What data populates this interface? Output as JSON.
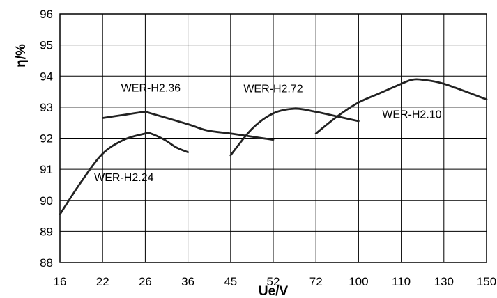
{
  "chart_data": {
    "type": "line",
    "xlabel": "Ue/V",
    "ylabel": "η/%",
    "x_ticks": [
      "16",
      "22",
      "26",
      "36",
      "45",
      "52",
      "72",
      "100",
      "110",
      "130",
      "150"
    ],
    "y_ticks": [
      "88",
      "89",
      "90",
      "91",
      "92",
      "93",
      "94",
      "95",
      "96"
    ],
    "ylim": [
      88,
      96
    ],
    "grid": true,
    "series": [
      {
        "name": "WER-H2.24",
        "x": [
          "16",
          "19",
          "22",
          "24",
          "26",
          "27.3",
          "30.5",
          "33.3",
          "36"
        ],
        "y": [
          89.55,
          90.6,
          91.5,
          91.95,
          92.15,
          92.15,
          91.95,
          91.7,
          91.55
        ]
      },
      {
        "name": "WER-H2.36",
        "x": [
          "22",
          "24",
          "26",
          "27.3",
          "36",
          "40",
          "45",
          "48.5",
          "52"
        ],
        "y": [
          92.65,
          92.75,
          92.85,
          92.8,
          92.45,
          92.25,
          92.15,
          92.05,
          91.95
        ]
      },
      {
        "name": "WER-H2.72",
        "x": [
          "45",
          "48.5",
          "52",
          "62",
          "72",
          "86",
          "100"
        ],
        "y": [
          91.45,
          92.3,
          92.8,
          92.95,
          92.85,
          92.7,
          92.55
        ]
      },
      {
        "name": "WER-H2.10",
        "x": [
          "72",
          "86",
          "100",
          "105",
          "110",
          "115",
          "120",
          "130",
          "150"
        ],
        "y": [
          92.15,
          92.7,
          93.15,
          93.45,
          93.75,
          93.88,
          93.88,
          93.75,
          93.25
        ]
      }
    ]
  }
}
